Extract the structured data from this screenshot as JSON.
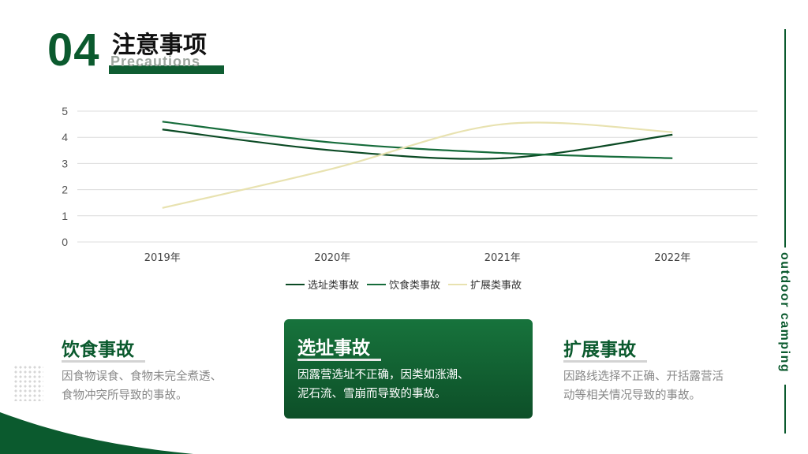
{
  "header": {
    "number": "04",
    "title": "注意事项",
    "subtitle": "Precautions"
  },
  "side_text": "outdoor camping",
  "chart_data": {
    "type": "line",
    "categories": [
      "2019年",
      "2020年",
      "2021年",
      "2022年"
    ],
    "ylim": [
      0,
      5
    ],
    "yticks": [
      0,
      1,
      2,
      3,
      4,
      5
    ],
    "grid": true,
    "legend": "bottom",
    "series": [
      {
        "name": "选址类事故",
        "values": [
          4.3,
          3.5,
          3.2,
          4.1
        ],
        "color": "#0b4a24"
      },
      {
        "name": "饮食类事故",
        "values": [
          4.6,
          3.8,
          3.4,
          3.2
        ],
        "color": "#166c3b"
      },
      {
        "name": "扩展类事故",
        "values": [
          1.3,
          2.8,
          4.5,
          4.2
        ],
        "color": "#e8e2b0"
      }
    ]
  },
  "cards": [
    {
      "title": "饮食事故",
      "lines": [
        "因食物误食、食物未完全煮透、",
        "食物冲突所导致的事故。"
      ]
    },
    {
      "title": "选址事故",
      "lines": [
        "因露营选址不正确，因类如涨潮、",
        "泥石流、雪崩而导致的事故。"
      ]
    },
    {
      "title": "扩展事故",
      "lines": [
        "因路线选择不正确、开括露营活",
        "动等相关情况导致的事故。"
      ]
    }
  ],
  "colors": {
    "brand": "#0b5a2e",
    "accent_light": "#e8e2b0"
  }
}
